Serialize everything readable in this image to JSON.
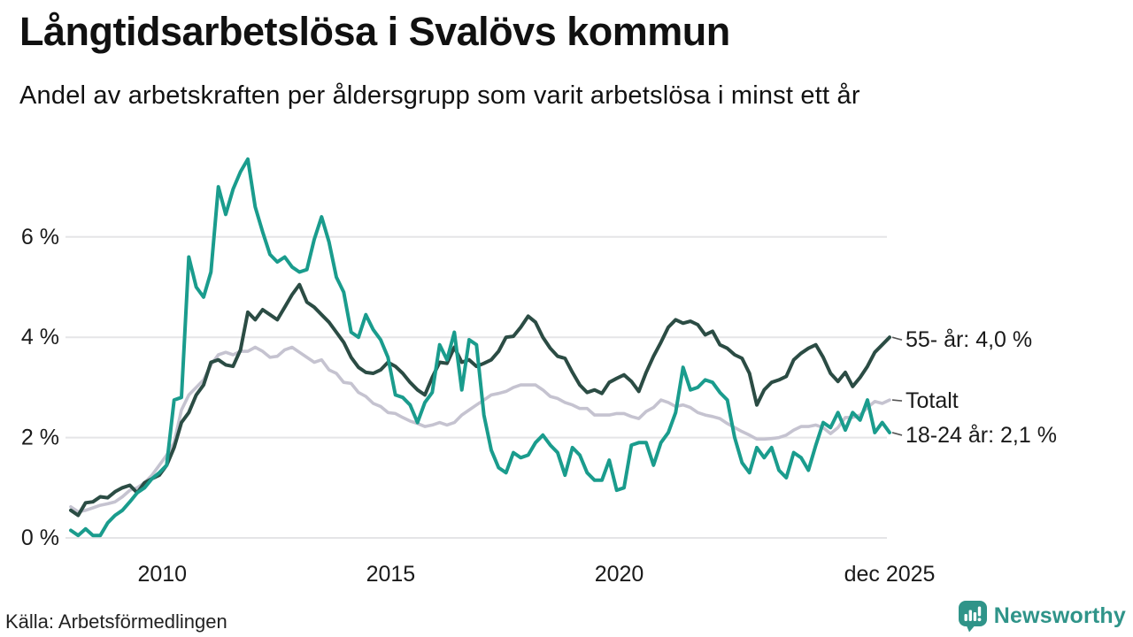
{
  "header": {
    "title": "Långtidsarbetslösa i Svalövs kommun",
    "subtitle": "Andel av arbetskraften per åldersgrupp som varit arbetslösa i minst ett år"
  },
  "footer": {
    "source": "Källa: Arbetsförmedlingen",
    "brand_name": "Newsworthy"
  },
  "colors": {
    "teal_18_24": "#1a9c8d",
    "dark_green_55": "#2b4c44",
    "light_gray_total": "#c5c3d0",
    "grid": "#e5e5e7",
    "connector": "#555555",
    "text": "#1a1a1a",
    "brand": "#2f9489"
  },
  "chart_data": {
    "type": "line",
    "title": "Långtidsarbetslösa i Svalövs kommun",
    "subtitle": "Andel av arbetskraften per åldersgrupp som varit arbetslösa i minst ett år",
    "source": "Källa: Arbetsförmedlingen",
    "unit": "%",
    "grid": true,
    "legend_position": "end-of-line labels, right side",
    "x_start_year": 2008.0,
    "x_end_year": 2025.917,
    "x_ticks": [
      {
        "label": "2010",
        "year": 2010.0
      },
      {
        "label": "2015",
        "year": 2015.0
      },
      {
        "label": "2020",
        "year": 2020.0
      },
      {
        "label": "dec 2025",
        "year": 2025.917
      }
    ],
    "y_ticks": [
      {
        "label": "0 %",
        "value": 0
      },
      {
        "label": "2 %",
        "value": 2
      },
      {
        "label": "4 %",
        "value": 4
      },
      {
        "label": "6 %",
        "value": 6
      }
    ],
    "ylim": [
      0,
      7.8
    ],
    "series": [
      {
        "name": "55- år",
        "end_label": "55- år: 4,0 %",
        "latest_value": 4.0,
        "color": "#2b4c44",
        "values": [
          0.55,
          0.45,
          0.7,
          0.72,
          0.82,
          0.8,
          0.92,
          1.0,
          1.05,
          0.9,
          1.1,
          1.18,
          1.25,
          1.45,
          1.8,
          2.3,
          2.5,
          2.85,
          3.05,
          3.5,
          3.55,
          3.45,
          3.42,
          3.75,
          4.5,
          4.35,
          4.55,
          4.45,
          4.35,
          4.6,
          4.85,
          5.05,
          4.7,
          4.6,
          4.45,
          4.3,
          4.1,
          3.9,
          3.6,
          3.4,
          3.3,
          3.28,
          3.35,
          3.5,
          3.42,
          3.28,
          3.1,
          2.95,
          2.85,
          3.2,
          3.5,
          3.48,
          3.8,
          3.5,
          3.55,
          3.42,
          3.48,
          3.55,
          3.72,
          4.0,
          4.02,
          4.2,
          4.42,
          4.3,
          4.0,
          3.78,
          3.62,
          3.58,
          3.3,
          3.05,
          2.9,
          2.95,
          2.88,
          3.1,
          3.18,
          3.25,
          3.12,
          2.92,
          3.3,
          3.62,
          3.9,
          4.2,
          4.35,
          4.28,
          4.32,
          4.25,
          4.05,
          4.12,
          3.85,
          3.78,
          3.65,
          3.58,
          3.28,
          2.65,
          2.95,
          3.1,
          3.15,
          3.22,
          3.55,
          3.68,
          3.78,
          3.85,
          3.6,
          3.28,
          3.12,
          3.3,
          3.02,
          3.2,
          3.42,
          3.7,
          3.85,
          4.0
        ]
      },
      {
        "name": "Totalt",
        "end_label": "Totalt",
        "latest_value": 2.75,
        "color": "#c5c3d0",
        "values": [
          0.62,
          0.52,
          0.55,
          0.6,
          0.65,
          0.68,
          0.72,
          0.82,
          0.95,
          1.0,
          1.1,
          1.25,
          1.45,
          1.65,
          1.9,
          2.55,
          2.85,
          3.0,
          3.15,
          3.45,
          3.65,
          3.7,
          3.65,
          3.72,
          3.72,
          3.8,
          3.72,
          3.6,
          3.62,
          3.75,
          3.8,
          3.7,
          3.6,
          3.5,
          3.55,
          3.35,
          3.28,
          3.1,
          3.08,
          2.9,
          2.82,
          2.68,
          2.62,
          2.5,
          2.48,
          2.4,
          2.33,
          2.28,
          2.22,
          2.25,
          2.3,
          2.25,
          2.3,
          2.45,
          2.55,
          2.65,
          2.75,
          2.85,
          2.88,
          2.92,
          3.0,
          3.05,
          3.05,
          3.05,
          2.95,
          2.82,
          2.78,
          2.7,
          2.65,
          2.58,
          2.58,
          2.45,
          2.45,
          2.45,
          2.48,
          2.48,
          2.42,
          2.38,
          2.52,
          2.6,
          2.75,
          2.7,
          2.62,
          2.65,
          2.6,
          2.5,
          2.45,
          2.42,
          2.38,
          2.28,
          2.2,
          2.12,
          2.05,
          1.97,
          1.97,
          1.98,
          2.0,
          2.05,
          2.15,
          2.22,
          2.22,
          2.25,
          2.2,
          2.08,
          2.2,
          2.4,
          2.4,
          2.45,
          2.6,
          2.72,
          2.68,
          2.75
        ]
      },
      {
        "name": "18-24 år",
        "end_label": "18-24 år: 2,1 %",
        "latest_value": 2.1,
        "color": "#1a9c8d",
        "values": [
          0.15,
          0.05,
          0.18,
          0.05,
          0.05,
          0.3,
          0.45,
          0.55,
          0.72,
          0.9,
          1.0,
          1.18,
          1.3,
          1.45,
          2.75,
          2.8,
          5.6,
          5.0,
          4.8,
          5.3,
          7.0,
          6.45,
          6.95,
          7.3,
          7.55,
          6.6,
          6.1,
          5.65,
          5.5,
          5.6,
          5.4,
          5.3,
          5.35,
          5.95,
          6.4,
          5.9,
          5.2,
          4.9,
          4.1,
          4.0,
          4.45,
          4.15,
          3.95,
          3.6,
          2.85,
          2.8,
          2.65,
          2.3,
          2.7,
          2.9,
          3.85,
          3.55,
          4.1,
          2.95,
          3.95,
          3.85,
          2.45,
          1.75,
          1.4,
          1.3,
          1.7,
          1.6,
          1.65,
          1.9,
          2.05,
          1.85,
          1.7,
          1.25,
          1.8,
          1.65,
          1.3,
          1.15,
          1.15,
          1.55,
          0.95,
          1.0,
          1.85,
          1.9,
          1.9,
          1.45,
          1.9,
          2.1,
          2.5,
          3.4,
          2.95,
          3.0,
          3.15,
          3.1,
          2.9,
          2.75,
          2.0,
          1.5,
          1.3,
          1.8,
          1.6,
          1.8,
          1.35,
          1.2,
          1.7,
          1.6,
          1.35,
          1.85,
          2.3,
          2.2,
          2.5,
          2.15,
          2.5,
          2.35,
          2.75,
          2.1,
          2.3,
          2.1
        ]
      }
    ]
  }
}
